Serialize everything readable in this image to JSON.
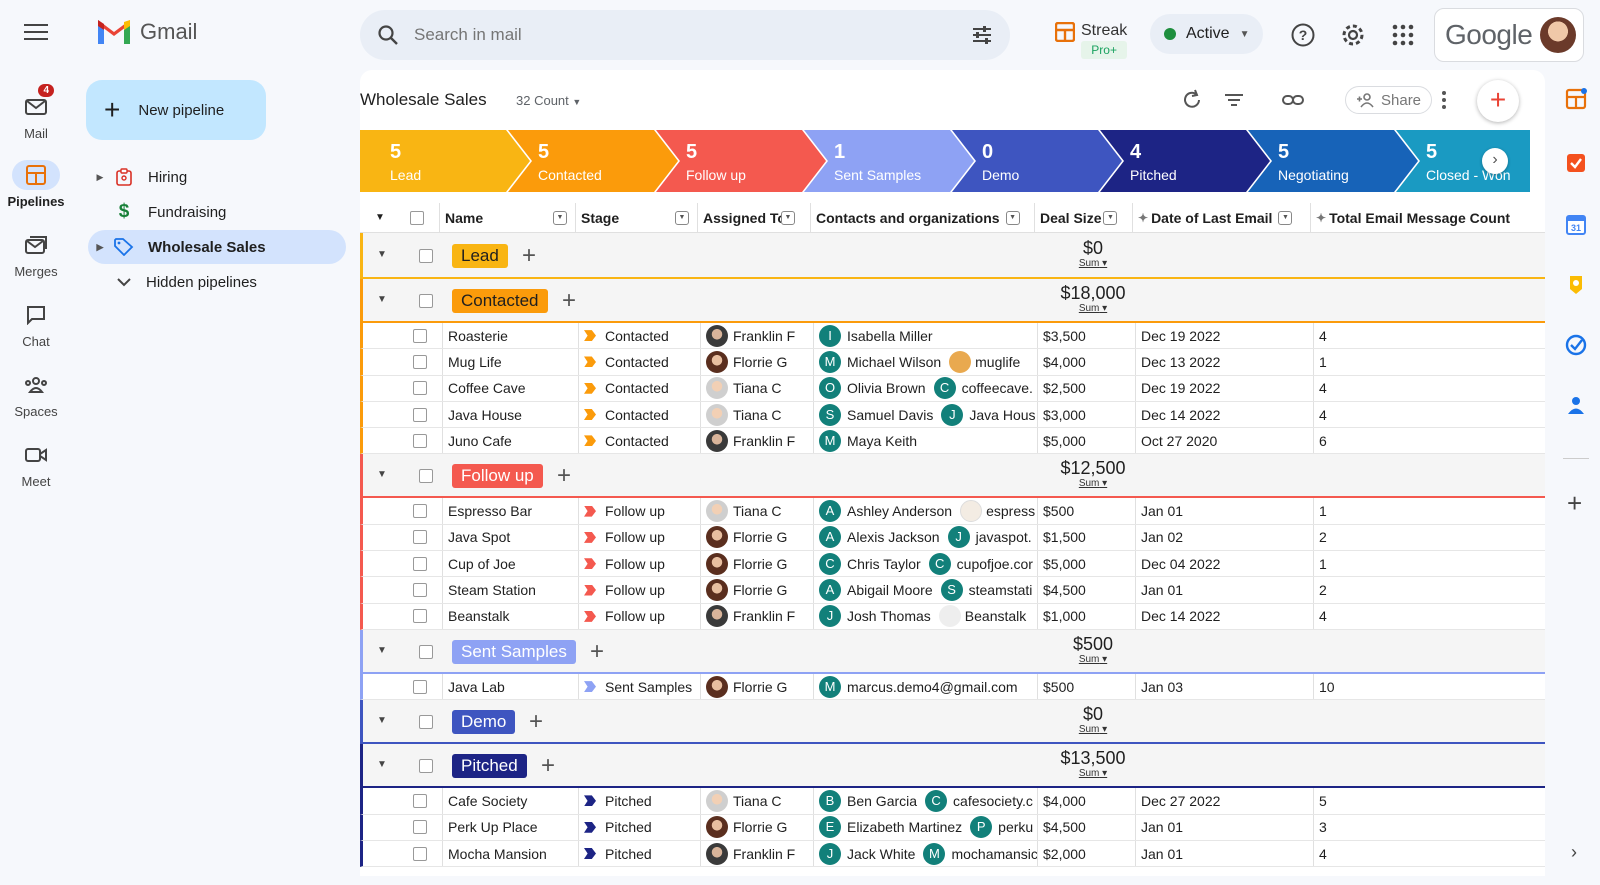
{
  "app": {
    "name": "Gmail"
  },
  "rail": [
    {
      "label": "Mail",
      "badge": "4"
    },
    {
      "label": "Pipelines"
    },
    {
      "label": "Merges"
    },
    {
      "label": "Chat"
    },
    {
      "label": "Spaces"
    },
    {
      "label": "Meet"
    }
  ],
  "search": {
    "placeholder": "Search in mail"
  },
  "header": {
    "streak": "Streak",
    "streak_plan": "Pro+",
    "status": "Active",
    "account_brand": "Google"
  },
  "sidebar": {
    "new_pipeline": "New pipeline",
    "items": [
      {
        "label": "Hiring"
      },
      {
        "label": "Fundraising"
      },
      {
        "label": "Wholesale Sales"
      },
      {
        "label": "Hidden pipelines"
      }
    ]
  },
  "pipeline": {
    "title": "Wholesale Sales",
    "count": "32 Count",
    "share": "Share"
  },
  "stages": [
    {
      "count": "5",
      "name": "Lead",
      "color": "#f9b513"
    },
    {
      "count": "5",
      "name": "Contacted",
      "color": "#fb9b0b"
    },
    {
      "count": "5",
      "name": "Follow up",
      "color": "#f4594f"
    },
    {
      "count": "1",
      "name": "Sent Samples",
      "color": "#8ea2f4"
    },
    {
      "count": "0",
      "name": "Demo",
      "color": "#3e55c0"
    },
    {
      "count": "4",
      "name": "Pitched",
      "color": "#1d2485"
    },
    {
      "count": "5",
      "name": "Negotiating",
      "color": "#1763b8"
    },
    {
      "count": "5",
      "name": "Closed - Won",
      "color": "#1a9ac2"
    }
  ],
  "columns": {
    "name": "Name",
    "stage": "Stage",
    "assigned": "Assigned To",
    "contacts": "Contacts and organizations",
    "deal": "Deal Size",
    "last_email": "Date of Last Email",
    "total": "Total Email Message Count"
  },
  "sum_label": "Sum",
  "groups": {
    "lead": {
      "label": "Lead",
      "sum": "$0",
      "color": "#f9b513"
    },
    "contacted": {
      "label": "Contacted",
      "sum": "$18,000",
      "color": "#fb9b0b"
    },
    "followup": {
      "label": "Follow up",
      "sum": "$12,500",
      "color": "#f4594f"
    },
    "samples": {
      "label": "Sent Samples",
      "sum": "$500",
      "color": "#8ea2f4"
    },
    "demo": {
      "label": "Demo",
      "sum": "$0",
      "color": "#3e55c0"
    },
    "pitched": {
      "label": "Pitched",
      "sum": "$13,500",
      "color": "#1d2485"
    }
  },
  "rows": {
    "contacted": [
      {
        "name": "Roasterie",
        "stage": "Contacted",
        "assigned": "Franklin F",
        "contact_initial": "I",
        "contact": "Isabella Miller",
        "org": "",
        "deal": "$3,500",
        "date": "Dec 19 2022",
        "total": "4"
      },
      {
        "name": "Mug Life",
        "stage": "Contacted",
        "assigned": "Florrie G",
        "contact_initial": "M",
        "contact": "Michael Wilson",
        "org": "muglife",
        "deal": "$4,000",
        "date": "Dec 13 2022",
        "total": "1"
      },
      {
        "name": "Coffee Cave",
        "stage": "Contacted",
        "assigned": "Tiana C",
        "contact_initial": "O",
        "contact": "Olivia Brown",
        "org_initial": "C",
        "org": "coffeecave.",
        "deal": "$2,500",
        "date": "Dec 19 2022",
        "total": "4"
      },
      {
        "name": "Java House",
        "stage": "Contacted",
        "assigned": "Tiana C",
        "contact_initial": "S",
        "contact": "Samuel Davis",
        "org_initial": "J",
        "org": "Java Hous",
        "deal": "$3,000",
        "date": "Dec 14 2022",
        "total": "4"
      },
      {
        "name": "Juno Cafe",
        "stage": "Contacted",
        "assigned": "Franklin F",
        "contact_initial": "M",
        "contact": "Maya Keith",
        "org": "",
        "deal": "$5,000",
        "date": "Oct 27 2020",
        "total": "6"
      }
    ],
    "followup": [
      {
        "name": "Espresso Bar",
        "stage": "Follow up",
        "assigned": "Tiana C",
        "contact_initial": "A",
        "contact": "Ashley Anderson",
        "org": "espress",
        "deal": "$500",
        "date": "Jan 01",
        "total": "1"
      },
      {
        "name": "Java Spot",
        "stage": "Follow up",
        "assigned": "Florrie G",
        "contact_initial": "A",
        "contact": "Alexis Jackson",
        "org_initial": "J",
        "org": "javaspot.",
        "deal": "$1,500",
        "date": "Jan 02",
        "total": "2"
      },
      {
        "name": "Cup of Joe",
        "stage": "Follow up",
        "assigned": "Florrie G",
        "contact_initial": "C",
        "contact": "Chris Taylor",
        "org_initial": "C",
        "org": "cupofjoe.cor",
        "deal": "$5,000",
        "date": "Dec 04 2022",
        "total": "1"
      },
      {
        "name": "Steam Station",
        "stage": "Follow up",
        "assigned": "Florrie G",
        "contact_initial": "A",
        "contact": "Abigail Moore",
        "org_initial": "S",
        "org": "steamstati",
        "deal": "$4,500",
        "date": "Jan 01",
        "total": "2"
      },
      {
        "name": "Beanstalk",
        "stage": "Follow up",
        "assigned": "Franklin F",
        "contact_initial": "J",
        "contact": "Josh Thomas",
        "org": "Beanstalk",
        "deal": "$1,000",
        "date": "Dec 14 2022",
        "total": "4"
      }
    ],
    "samples": [
      {
        "name": "Java Lab",
        "stage": "Sent Samples",
        "assigned": "Florrie G",
        "contact_initial": "M",
        "contact": "marcus.demo4@gmail.com",
        "org": "",
        "deal": "$500",
        "date": "Jan 03",
        "total": "10"
      }
    ],
    "pitched": [
      {
        "name": "Cafe Society",
        "stage": "Pitched",
        "assigned": "Tiana C",
        "contact_initial": "B",
        "contact": "Ben Garcia",
        "org_initial": "C",
        "org": "cafesociety.c",
        "deal": "$4,000",
        "date": "Dec 27 2022",
        "total": "5"
      },
      {
        "name": "Perk Up Place",
        "stage": "Pitched",
        "assigned": "Florrie G",
        "contact_initial": "E",
        "contact": "Elizabeth Martinez",
        "org_initial": "P",
        "org": "perku",
        "deal": "$4,500",
        "date": "Jan 01",
        "total": "3"
      },
      {
        "name": "Mocha Mansion",
        "stage": "Pitched",
        "assigned": "Franklin F",
        "contact_initial": "J",
        "contact": "Jack White",
        "org_initial": "M",
        "org": "mochamansic",
        "deal": "$2,000",
        "date": "Jan 01",
        "total": "4"
      }
    ]
  }
}
